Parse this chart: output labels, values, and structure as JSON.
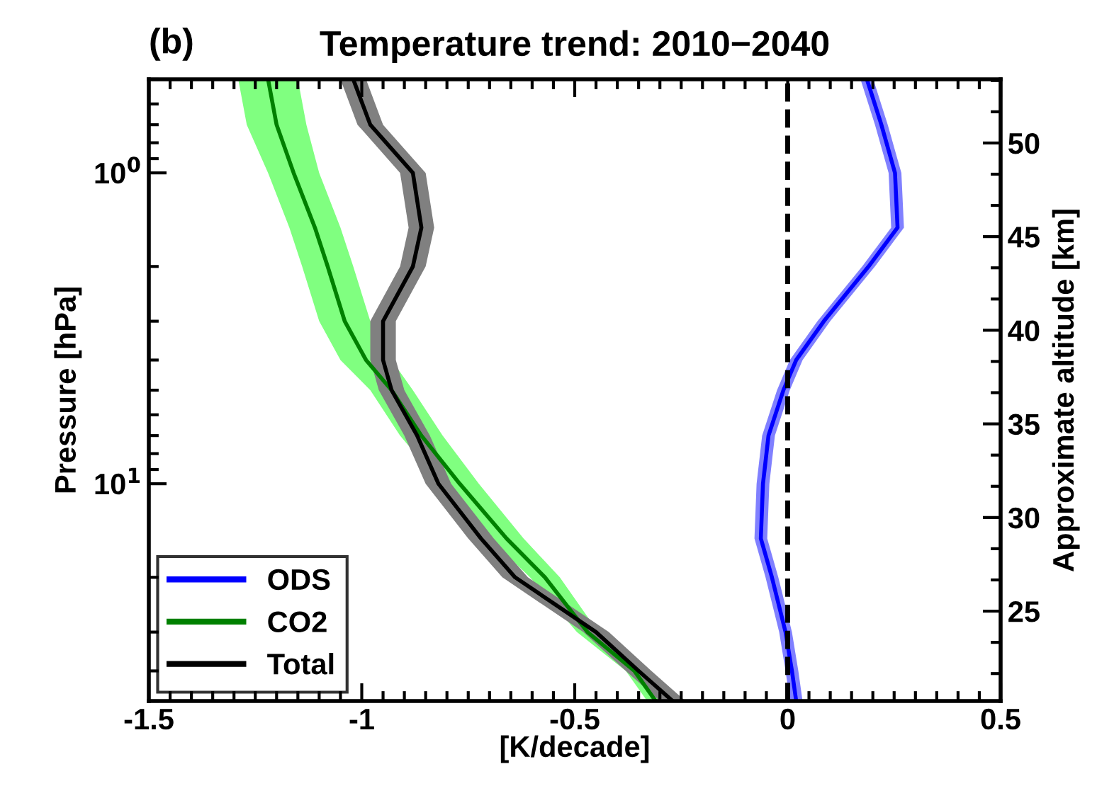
{
  "chart_data": {
    "type": "line",
    "orientation": "horizontal",
    "title": "Temperature trend: 2010−2040",
    "annotations": [
      "(b)"
    ],
    "xlabel": "[K/decade]",
    "ylabel": "Pressure [hPa]",
    "y2label": "Approximate altitude [km]",
    "xlim": [
      -1.5,
      0.5
    ],
    "xticks": [
      -1.5,
      -1,
      -0.5,
      0,
      0.5
    ],
    "ylim": [
      50,
      0.5
    ],
    "yticks": [
      {
        "value": 1,
        "label": "10$^{0}$"
      },
      {
        "value": 10,
        "label": "10$^{1}$"
      }
    ],
    "log": "y",
    "y2lim": [
      20.2,
      53.4
    ],
    "y2ticks": [
      25,
      30,
      35,
      40,
      45,
      50
    ],
    "ref_lines": [
      {
        "axis": "x",
        "value": 0,
        "color": "#000000",
        "line_style": "dashed"
      }
    ],
    "legend": "bottom left",
    "grid": false,
    "marker": "none",
    "line_style": "solid",
    "series": [
      {
        "name": "ODS",
        "color": "#0000ff",
        "x": [
          0.5,
          0.7,
          1,
          1.5,
          2,
          3,
          4,
          5,
          7,
          10,
          15,
          20,
          30,
          40,
          50
        ],
        "values": [
          0.186,
          0.22,
          0.252,
          0.258,
          0.19,
          0.085,
          0.02,
          -0.01,
          -0.045,
          -0.058,
          -0.063,
          -0.037,
          -0.005,
          0.01,
          0.02
        ],
        "lower": [
          0.171,
          0.205,
          0.237,
          0.243,
          0.175,
          0.07,
          0.005,
          -0.025,
          -0.06,
          -0.073,
          -0.078,
          -0.052,
          -0.02,
          -0.005,
          0.005
        ],
        "upper": [
          0.201,
          0.235,
          0.267,
          0.273,
          0.205,
          0.1,
          0.035,
          0.005,
          -0.03,
          -0.043,
          -0.048,
          -0.022,
          0.01,
          0.025,
          0.035
        ]
      },
      {
        "name": "CO2",
        "color": "#008000",
        "x": [
          0.5,
          0.7,
          1,
          1.5,
          2,
          3,
          4,
          5,
          7,
          10,
          15,
          20,
          30,
          40,
          50
        ],
        "values": [
          -1.22,
          -1.2,
          -1.16,
          -1.11,
          -1.08,
          -1.04,
          -0.99,
          -0.93,
          -0.86,
          -0.77,
          -0.66,
          -0.57,
          -0.47,
          -0.36,
          -0.31
        ],
        "lower": [
          -1.29,
          -1.27,
          -1.22,
          -1.17,
          -1.14,
          -1.1,
          -1.05,
          -0.98,
          -0.91,
          -0.815,
          -0.7,
          -0.605,
          -0.495,
          -0.38,
          -0.33
        ],
        "upper": [
          -1.15,
          -1.13,
          -1.1,
          -1.05,
          -1.02,
          -0.98,
          -0.93,
          -0.88,
          -0.81,
          -0.725,
          -0.62,
          -0.535,
          -0.445,
          -0.34,
          -0.29
        ]
      },
      {
        "name": "Total",
        "color": "#000000",
        "x": [
          0.5,
          0.7,
          1,
          1.5,
          2,
          3,
          4,
          5,
          7,
          10,
          15,
          20,
          30,
          40,
          50
        ],
        "values": [
          -1.02,
          -0.98,
          -0.88,
          -0.86,
          -0.88,
          -0.95,
          -0.95,
          -0.93,
          -0.87,
          -0.82,
          -0.72,
          -0.64,
          -0.45,
          -0.35,
          -0.27
        ],
        "lower": [
          -1.05,
          -1.01,
          -0.91,
          -0.89,
          -0.91,
          -0.98,
          -0.98,
          -0.96,
          -0.9,
          -0.85,
          -0.75,
          -0.67,
          -0.48,
          -0.38,
          -0.3
        ],
        "upper": [
          -0.99,
          -0.95,
          -0.85,
          -0.83,
          -0.85,
          -0.92,
          -0.92,
          -0.9,
          -0.84,
          -0.79,
          -0.69,
          -0.61,
          -0.42,
          -0.32,
          -0.24
        ]
      }
    ]
  }
}
